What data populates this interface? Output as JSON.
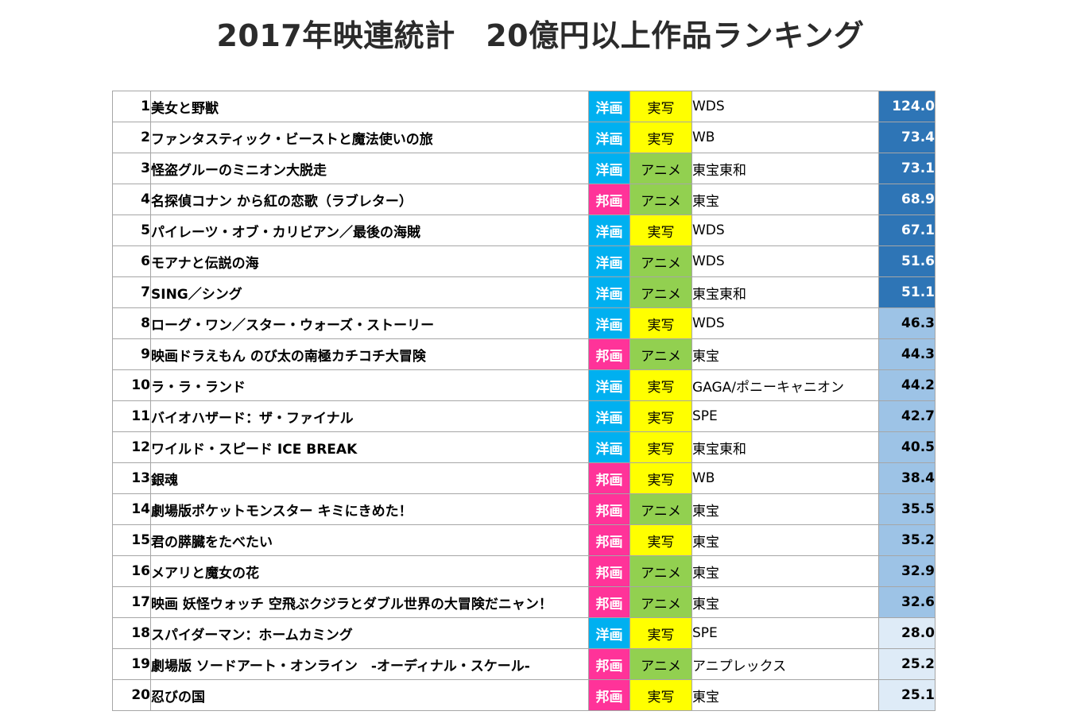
{
  "title": "2017年映連統計　20億円以上作品ランキング",
  "colors": {
    "western": "#00b0f0",
    "japanese": "#ff3399",
    "live_action": "#ffff00",
    "anime": "#92d050",
    "gross_tier1": "#2e75b6",
    "gross_tier2": "#9dc3e6",
    "gross_tier3": "#deebf7"
  },
  "rows": [
    {
      "rank": "1",
      "title": "美女と野獣",
      "origin": "洋画",
      "type": "実写",
      "distributor": "WDS",
      "gross": "124.0"
    },
    {
      "rank": "2",
      "title": "ファンタスティック・ビーストと魔法使いの旅",
      "origin": "洋画",
      "type": "実写",
      "distributor": "WB",
      "gross": "73.4"
    },
    {
      "rank": "3",
      "title": "怪盗グルーのミニオン大脱走",
      "origin": "洋画",
      "type": "アニメ",
      "distributor": "東宝東和",
      "gross": "73.1"
    },
    {
      "rank": "4",
      "title": "名探偵コナン から紅の恋歌（ラブレター）",
      "origin": "邦画",
      "type": "アニメ",
      "distributor": "東宝",
      "gross": "68.9"
    },
    {
      "rank": "5",
      "title": "パイレーツ・オブ・カリビアン／最後の海賊",
      "origin": "洋画",
      "type": "実写",
      "distributor": "WDS",
      "gross": "67.1"
    },
    {
      "rank": "6",
      "title": "モアナと伝説の海",
      "origin": "洋画",
      "type": "アニメ",
      "distributor": "WDS",
      "gross": "51.6"
    },
    {
      "rank": "7",
      "title": "SING／シング",
      "origin": "洋画",
      "type": "アニメ",
      "distributor": "東宝東和",
      "gross": "51.1"
    },
    {
      "rank": "8",
      "title": "ローグ・ワン／スター・ウォーズ・ストーリー",
      "origin": "洋画",
      "type": "実写",
      "distributor": "WDS",
      "gross": "46.3"
    },
    {
      "rank": "9",
      "title": "映画ドラえもん のび太の南極カチコチ大冒険",
      "origin": "邦画",
      "type": "アニメ",
      "distributor": "東宝",
      "gross": "44.3"
    },
    {
      "rank": "10",
      "title": "ラ・ラ・ランド",
      "origin": "洋画",
      "type": "実写",
      "distributor": "GAGA/ポニーキャニオン",
      "gross": "44.2"
    },
    {
      "rank": "11",
      "title": "バイオハザード：ザ・ファイナル",
      "origin": "洋画",
      "type": "実写",
      "distributor": "SPE",
      "gross": "42.7"
    },
    {
      "rank": "12",
      "title": "ワイルド・スピード ICE BREAK",
      "origin": "洋画",
      "type": "実写",
      "distributor": "東宝東和",
      "gross": "40.5"
    },
    {
      "rank": "13",
      "title": "銀魂",
      "origin": "邦画",
      "type": "実写",
      "distributor": "WB",
      "gross": "38.4"
    },
    {
      "rank": "14",
      "title": "劇場版ポケットモンスター キミにきめた！",
      "origin": "邦画",
      "type": "アニメ",
      "distributor": "東宝",
      "gross": "35.5"
    },
    {
      "rank": "15",
      "title": "君の膵臓をたべたい",
      "origin": "邦画",
      "type": "実写",
      "distributor": "東宝",
      "gross": "35.2"
    },
    {
      "rank": "16",
      "title": "メアリと魔女の花",
      "origin": "邦画",
      "type": "アニメ",
      "distributor": "東宝",
      "gross": "32.9"
    },
    {
      "rank": "17",
      "title": "映画 妖怪ウォッチ 空飛ぶクジラとダブル世界の大冒険だニャン！",
      "origin": "邦画",
      "type": "アニメ",
      "distributor": "東宝",
      "gross": "32.6"
    },
    {
      "rank": "18",
      "title": "スパイダーマン：ホームカミング",
      "origin": "洋画",
      "type": "実写",
      "distributor": "SPE",
      "gross": "28.0"
    },
    {
      "rank": "19",
      "title": "劇場版 ソードアート・オンライン　-オーディナル・スケール-",
      "origin": "邦画",
      "type": "アニメ",
      "distributor": "アニプレックス",
      "gross": "25.2"
    },
    {
      "rank": "20",
      "title": "忍びの国",
      "origin": "邦画",
      "type": "実写",
      "distributor": "東宝",
      "gross": "25.1"
    }
  ]
}
